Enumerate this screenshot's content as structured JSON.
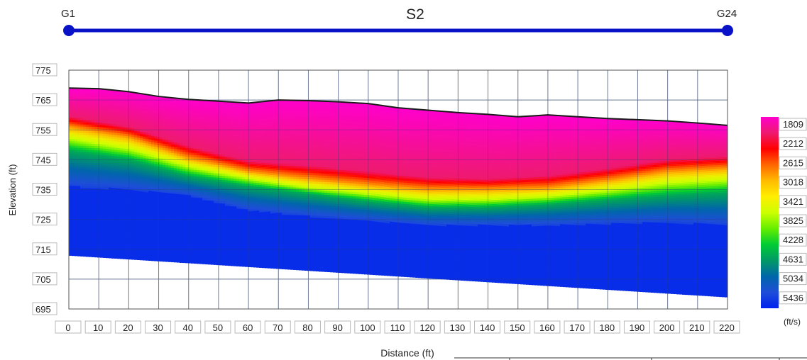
{
  "chart_data": {
    "type": "heatmap",
    "title": "S2",
    "xlabel": "Distance (ft)",
    "ylabel": "Elevation (ft)",
    "xlim": [
      0,
      220
    ],
    "ylim": [
      695,
      775
    ],
    "x_ticks": [
      0,
      10,
      20,
      30,
      40,
      50,
      60,
      70,
      80,
      90,
      100,
      110,
      120,
      130,
      140,
      150,
      160,
      170,
      180,
      190,
      200,
      210,
      220
    ],
    "y_ticks": [
      775,
      765,
      755,
      745,
      735,
      725,
      715,
      705,
      695
    ],
    "grid": true,
    "line_endpoints": {
      "start": {
        "label": "G1",
        "x": 0
      },
      "end": {
        "label": "G24",
        "x": 220
      }
    },
    "colorbar": {
      "unit": "(ft/s)",
      "position": "right",
      "ticks": [
        1809,
        2212,
        2615,
        3018,
        3421,
        3825,
        4228,
        4631,
        5034,
        5436
      ],
      "colors": [
        "#ff00cc",
        "#ee1a70",
        "#ff0000",
        "#ff6600",
        "#ffbb00",
        "#ffee00",
        "#ccff00",
        "#66ee00",
        "#00cc33",
        "#009966",
        "#0066aa",
        "#1e4ed8",
        "#0022ee"
      ]
    },
    "surface": {
      "x": [
        0,
        10,
        20,
        30,
        40,
        50,
        60,
        70,
        80,
        90,
        100,
        110,
        120,
        130,
        140,
        150,
        160,
        170,
        180,
        190,
        200,
        210,
        220
      ],
      "y": [
        769,
        768.8,
        767.8,
        766.2,
        765.2,
        764.6,
        764,
        765,
        764.8,
        764.4,
        763.8,
        762.4,
        761.6,
        760.8,
        760.2,
        759.4,
        760,
        759.4,
        758.8,
        758.4,
        758,
        757.3,
        756.5
      ]
    },
    "bottom": {
      "x": [
        0,
        220
      ],
      "y": [
        713,
        699
      ]
    },
    "velocity_boundaries": [
      {
        "velocity": 2212,
        "x": [
          0,
          20,
          40,
          60,
          80,
          100,
          120,
          140,
          160,
          180,
          200,
          220
        ],
        "y": [
          759.5,
          756,
          749.5,
          744.5,
          743,
          741,
          739,
          738.5,
          739.5,
          742,
          745,
          746
        ]
      },
      {
        "velocity": 3018,
        "x": [
          0,
          20,
          40,
          60,
          80,
          100,
          120,
          140,
          160,
          180,
          200,
          220
        ],
        "y": [
          756,
          752.5,
          745.5,
          741,
          738.5,
          736.5,
          735,
          735,
          735.5,
          738,
          741,
          742
        ]
      },
      {
        "velocity": 3825,
        "x": [
          0,
          20,
          40,
          60,
          80,
          100,
          120,
          140,
          160,
          180,
          200,
          220
        ],
        "y": [
          752,
          748.5,
          742.5,
          738.5,
          735.5,
          733.5,
          731.5,
          731.5,
          732.5,
          734.5,
          737,
          738
        ]
      },
      {
        "velocity": 4631,
        "x": [
          0,
          20,
          40,
          60,
          80,
          100,
          120,
          140,
          160,
          180,
          200,
          220
        ],
        "y": [
          748,
          745,
          739.5,
          736,
          733.5,
          731,
          729,
          729,
          730,
          731.5,
          733,
          734
        ]
      },
      {
        "velocity": 5436,
        "x": [
          0,
          20,
          40,
          60,
          80,
          100,
          120,
          140,
          160,
          180,
          200,
          220
        ],
        "y": [
          736,
          735,
          733,
          728,
          726,
          724.5,
          723,
          723,
          723,
          723.5,
          724,
          723
        ]
      }
    ]
  }
}
